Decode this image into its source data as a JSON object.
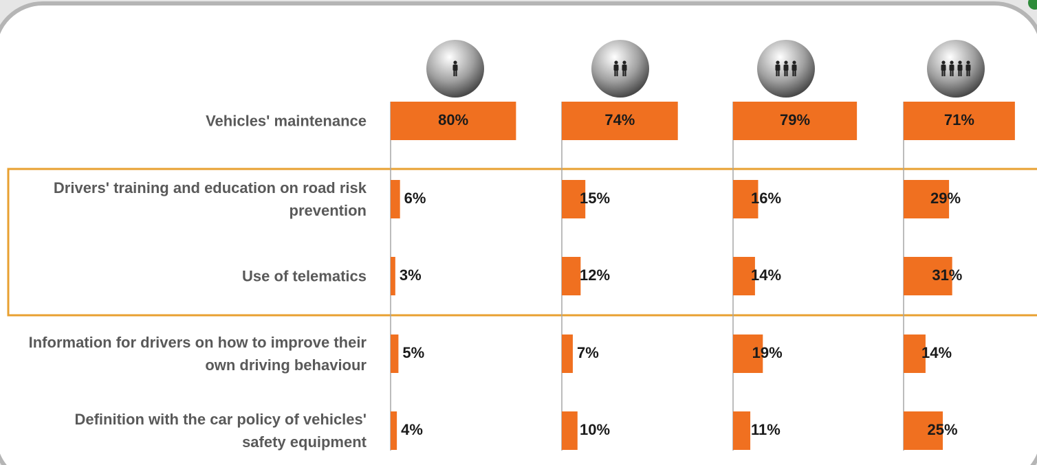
{
  "chart_data": {
    "type": "bar",
    "orientation": "horizontal",
    "categories": [
      "Vehicles' maintenance",
      "Drivers' training and education on road risk prevention",
      "Use of telematics",
      "Information for drivers on how to improve their own driving behaviour",
      "Definition with the car policy of vehicles' safety equipment"
    ],
    "xlim": [
      0,
      100
    ],
    "series": [
      {
        "color": "#f07020",
        "values": [
          80,
          6,
          3,
          5,
          4
        ],
        "value_labels": [
          "80%",
          "6%",
          "3%",
          "5%",
          "4%"
        ]
      },
      {
        "color": "#f07020",
        "values": [
          74,
          15,
          12,
          7,
          10
        ],
        "value_labels": [
          "74%",
          "15%",
          "12%",
          "7%",
          "10%"
        ]
      },
      {
        "color": "#f07020",
        "values": [
          79,
          16,
          14,
          19,
          11
        ],
        "value_labels": [
          "79%",
          "16%",
          "14%",
          "19%",
          "11%"
        ]
      },
      {
        "color": "#f07020",
        "values": [
          71,
          29,
          31,
          14,
          25
        ],
        "value_labels": [
          "71%",
          "29%",
          "31%",
          "14%",
          "25%"
        ]
      }
    ]
  }
}
